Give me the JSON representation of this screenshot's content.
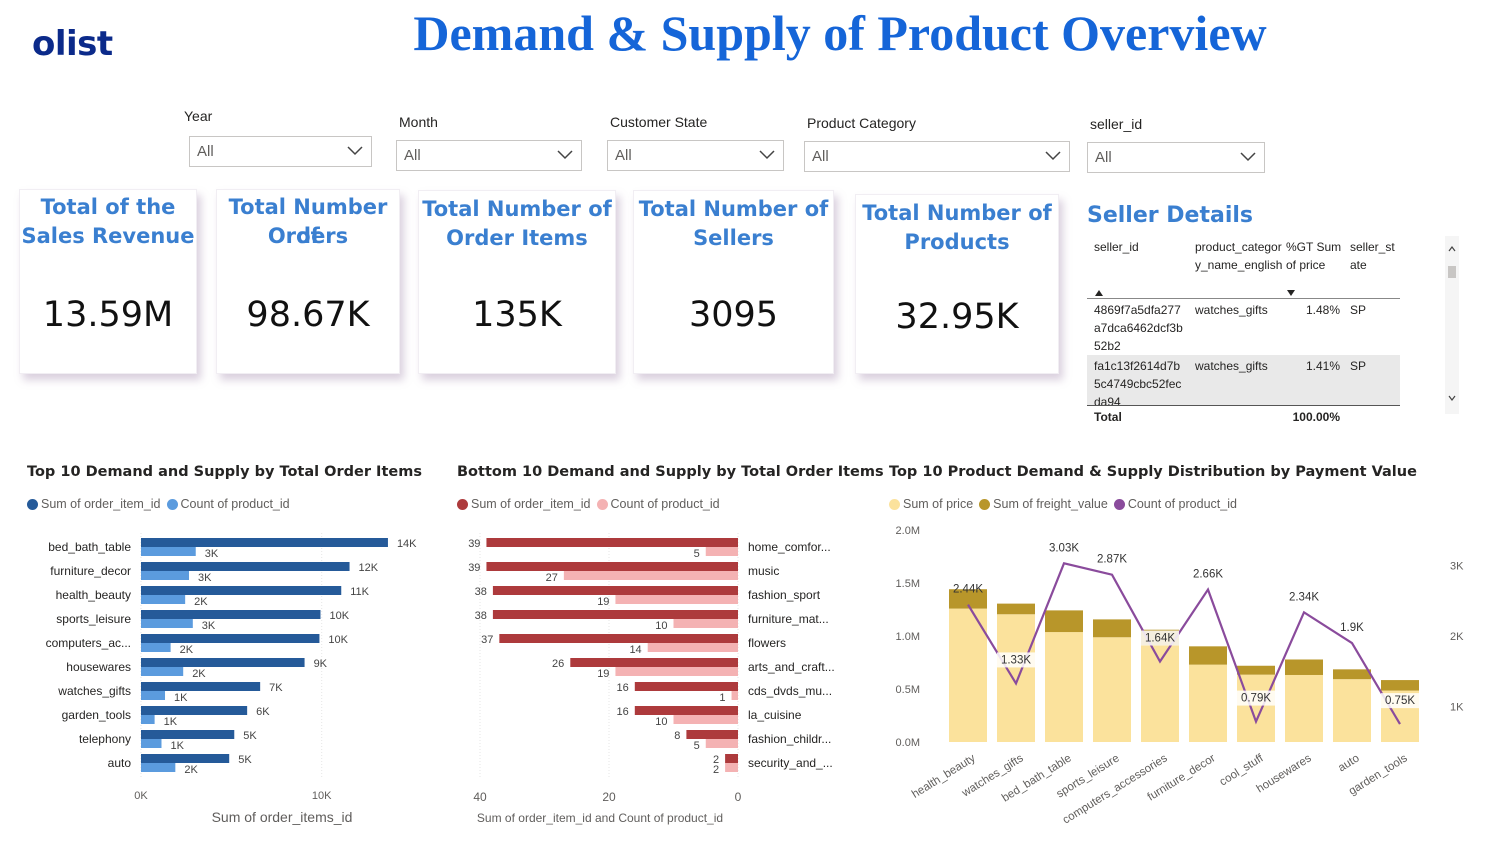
{
  "header": {
    "logo": "olist",
    "title": "Demand & Supply of Product Overview"
  },
  "slicers": [
    {
      "label": "Year",
      "value": "All"
    },
    {
      "label": "Month",
      "value": "All"
    },
    {
      "label": "Customer State",
      "value": "All"
    },
    {
      "label": "Product Category",
      "value": "All"
    },
    {
      "label": "seller_id",
      "value": "All"
    }
  ],
  "cards": [
    {
      "title_lines": [
        "Total of the",
        "Sales Revenue"
      ],
      "value": "13.59M"
    },
    {
      "title_lines": [
        "Total Number of",
        "Orders"
      ],
      "value": "98.67K"
    },
    {
      "title_lines": [
        "Total Number of",
        "Order Items"
      ],
      "value": "135K"
    },
    {
      "title_lines": [
        "Total Number of",
        "Sellers"
      ],
      "value": "3095"
    },
    {
      "title_lines": [
        "Total Number of",
        "Products"
      ],
      "value": "32.95K"
    }
  ],
  "seller_details": {
    "title": "Seller Details",
    "columns": [
      "seller_id",
      "product_category_name_english",
      "%GT Sum of price",
      "seller_state"
    ],
    "rows": [
      [
        "4869f7a5dfa277a7dca6462dcf3b52b2",
        "watches_gifts",
        "1.48%",
        "SP"
      ],
      [
        "fa1c13f2614d7b5c4749cbc52fecda94",
        "watches_gifts",
        "1.41%",
        "SP"
      ]
    ],
    "total_label": "Total",
    "total_value": "100.00%"
  },
  "chart_data": [
    {
      "type": "bar",
      "title": "Top 10 Demand and Supply by Total Order Items",
      "orientation": "horizontal",
      "categories": [
        "bed_bath_table",
        "furniture_decor",
        "health_beauty",
        "sports_leisure",
        "computers_ac...",
        "housewares",
        "watches_gifts",
        "garden_tools",
        "telephony",
        "auto"
      ],
      "series": [
        {
          "name": "Sum of order_item_id",
          "color": "#255a99",
          "values": [
            13665,
            11540,
            11081,
            9932,
            9874,
            9051,
            6594,
            5874,
            5161,
            4881
          ],
          "labels": [
            "14K",
            "12K",
            "11K",
            "10K",
            "10K",
            "9K",
            "7K",
            "6K",
            "5K",
            "5K"
          ]
        },
        {
          "name": "Count of product_id",
          "color": "#5b9bde",
          "values": [
            3029,
            2657,
            2444,
            2867,
            1639,
            2335,
            1329,
            753,
            1134,
            1900
          ],
          "labels": [
            "3K",
            "3K",
            "2K",
            "3K",
            "2K",
            "2K",
            "1K",
            "1K",
            "1K",
            "2K"
          ]
        }
      ],
      "xticks": [
        "0K",
        "10K"
      ],
      "xlabel": "Sum of order_items_id",
      "xlim": [
        0,
        14000
      ],
      "legend": "top-left"
    },
    {
      "type": "bar",
      "title": "Bottom 10 Demand and Supply by Total Order Items",
      "orientation": "horizontal-reversed",
      "categories": [
        "home_comfor...",
        "music",
        "fashion_sport",
        "furniture_mat...",
        "flowers",
        "arts_and_craft...",
        "cds_dvds_mu...",
        "la_cuisine",
        "fashion_childr...",
        "security_and_..."
      ],
      "series": [
        {
          "name": "Sum of order_item_id",
          "color": "#ad3a3c",
          "values": [
            39,
            39,
            38,
            38,
            37,
            26,
            16,
            16,
            8,
            2
          ]
        },
        {
          "name": "Count of product_id",
          "color": "#f4b2b3",
          "values": [
            5,
            27,
            19,
            10,
            14,
            19,
            1,
            10,
            5,
            2
          ]
        }
      ],
      "xticks": [
        "40",
        "20",
        "0"
      ],
      "xlabel": "Sum of order_item_id and Count of product_id",
      "xlim": [
        0,
        40
      ],
      "legend": "top-left"
    },
    {
      "type": "bar",
      "title": "Top 10 Product Demand & Supply Distribution by Payment Value",
      "stacked": true,
      "categories": [
        "health_beauty",
        "watches_gifts",
        "bed_bath_table",
        "sports_leisure",
        "computers_accessories",
        "furniture_decor",
        "cool_stuff",
        "housewares",
        "auto",
        "garden_tools"
      ],
      "series": [
        {
          "name": "Sum of price",
          "color": "#fbe29c",
          "values": [
            1258681,
            1205006,
            1036989,
            988049,
            911954,
            729762,
            635291,
            632249,
            592720,
            485256
          ]
        },
        {
          "name": "Sum of freight_value",
          "color": "#b8962a",
          "values": [
            182566,
            100535,
            204693,
            168607,
            147319,
            172749,
            84040,
            146150,
            92665,
            98962
          ]
        },
        {
          "name": "Count of product_id",
          "color": "#8a4b9c",
          "axis": "right",
          "values": [
            2444,
            1329,
            3029,
            2867,
            1639,
            2657,
            789,
            2335,
            1900,
            753
          ],
          "labels": [
            "2.44K",
            "1.33K",
            "3.03K",
            "2.87K",
            "1.64K",
            "2.66K",
            "0.79K",
            "2.34K",
            "1.9K",
            "0.75K"
          ]
        }
      ],
      "yticks_left": [
        "0.0M",
        "0.5M",
        "1.0M",
        "1.5M",
        "2.0M"
      ],
      "yticks_right": [
        "1K",
        "2K",
        "3K"
      ],
      "ylim_left": [
        0,
        2000000
      ],
      "ylim_right": [
        500,
        3500
      ],
      "legend": "top-left"
    }
  ]
}
